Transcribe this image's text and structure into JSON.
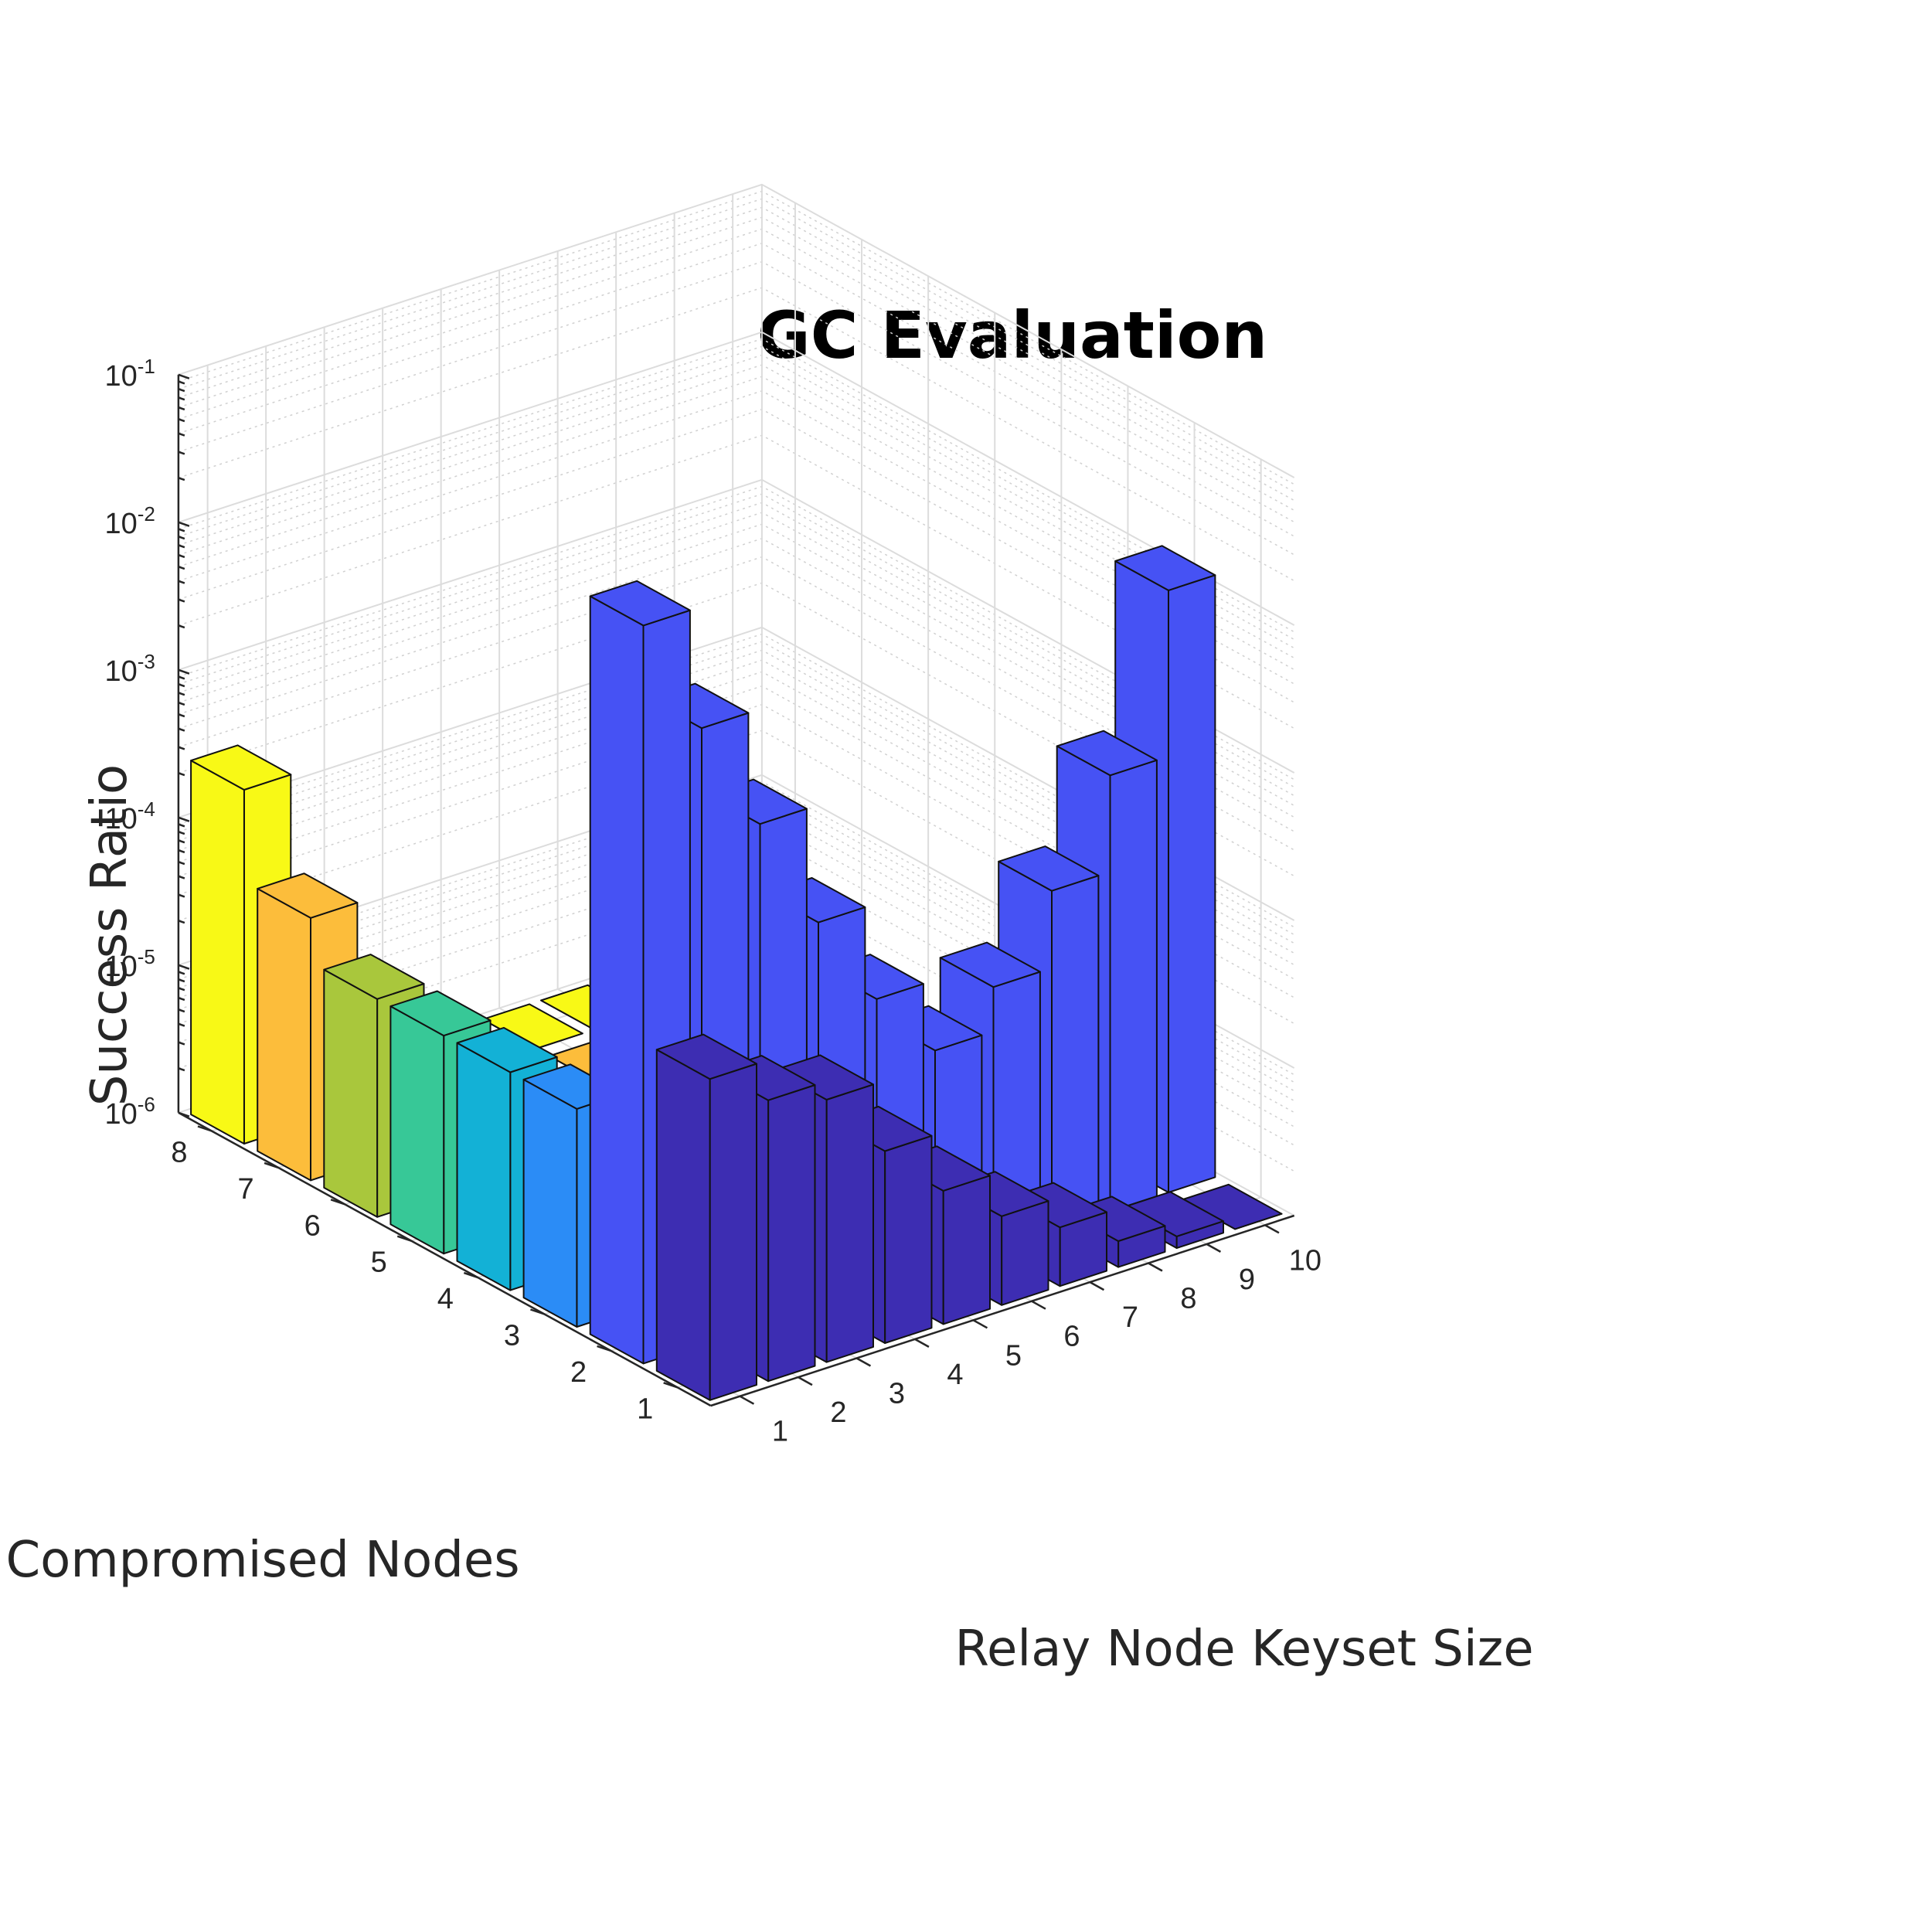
{
  "chart_data": {
    "type": "bar3d",
    "title": "GC Evaluation",
    "xlabel": "Relay Node Keyset Size",
    "ylabel": "Compromised Nodes",
    "zlabel": "Success Ratio",
    "zscale": "log",
    "zlim": [
      1e-06,
      0.1
    ],
    "x_ticks": [
      "1",
      "2",
      "3",
      "4",
      "5",
      "6",
      "7",
      "8",
      "9",
      "10"
    ],
    "y_ticks": [
      "1",
      "2",
      "3",
      "4",
      "5",
      "6",
      "7",
      "8"
    ],
    "z_ticks": [
      {
        "base": "10",
        "exp": "-6"
      },
      {
        "base": "10",
        "exp": "-5"
      },
      {
        "base": "10",
        "exp": "-4"
      },
      {
        "base": "10",
        "exp": "-3"
      },
      {
        "base": "10",
        "exp": "-2"
      },
      {
        "base": "10",
        "exp": "-1"
      }
    ],
    "grid": true,
    "series": [
      {
        "name": "1",
        "color": "#3d2db2",
        "values": [
          0.00015,
          8e-05,
          6e-05,
          2e-05,
          8e-06,
          4e-06,
          2.5e-06,
          1.5e-06,
          1.2e-06,
          1e-06
        ]
      },
      {
        "name": "2",
        "color": "#4652f4",
        "values": [
          0.1,
          0.015,
          0.0025,
          0.0004,
          9e-05,
          3e-05,
          6e-05,
          0.0002,
          0.0009,
          0.012
        ]
      },
      {
        "name": "3",
        "color": "#2b8cf6",
        "values": [
          3e-05,
          1e-06,
          1e-06,
          1e-06,
          1e-06,
          1e-06,
          1e-06,
          1e-06,
          1e-06,
          1e-06
        ]
      },
      {
        "name": "4",
        "color": "#13b1d6",
        "values": [
          3e-05,
          1e-06,
          1e-06,
          1e-06,
          1e-06,
          1e-06,
          1e-06,
          1e-06,
          1e-06,
          1e-06
        ]
      },
      {
        "name": "5",
        "color": "#37c897",
        "values": [
          3e-05,
          1e-06,
          1e-06,
          1e-06,
          1e-06,
          1e-06,
          1e-06,
          1e-06,
          1e-06,
          1e-06
        ]
      },
      {
        "name": "6",
        "color": "#a9c73c",
        "values": [
          3e-05,
          1e-06,
          1e-06,
          1e-06,
          1e-06,
          1e-06,
          1e-06,
          1e-06,
          1e-06,
          1e-06
        ]
      },
      {
        "name": "7",
        "color": "#fcbd3b",
        "values": [
          6e-05,
          1e-06,
          1e-06,
          1e-06,
          1e-06,
          1e-06,
          1e-06,
          1e-06,
          1e-06,
          1e-06
        ]
      },
      {
        "name": "8",
        "color": "#f8f916",
        "values": [
          0.00025,
          1e-06,
          1e-06,
          1e-06,
          1e-06,
          1e-06,
          1e-06,
          1e-06,
          1e-06,
          1e-06
        ]
      }
    ]
  }
}
